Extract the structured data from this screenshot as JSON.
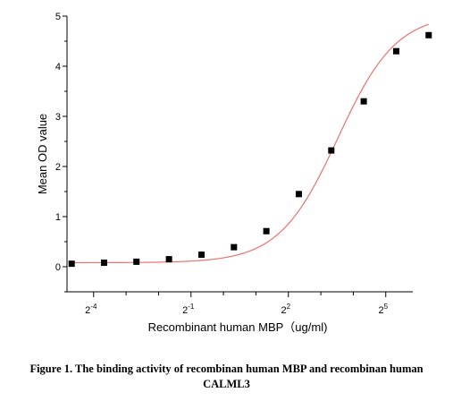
{
  "chart_data": {
    "type": "scatter",
    "xlabel": "Recombinant human  MBP（ug/ml)",
    "ylabel": "Mean OD value",
    "xscale": "log2",
    "xlim": [
      0.0354,
      57.0
    ],
    "ylim": [
      -0.5,
      5
    ],
    "yticks": [
      0,
      1,
      2,
      3,
      4,
      5
    ],
    "xticks": [
      {
        "base": "2",
        "exp": "-4",
        "value": 0.0625
      },
      {
        "base": "2",
        "exp": "-1",
        "value": 0.5
      },
      {
        "base": "2",
        "exp": "2",
        "value": 4
      },
      {
        "base": "2",
        "exp": "5",
        "value": 32
      }
    ],
    "series": [
      {
        "marker": "square",
        "color": "#000000",
        "points": [
          {
            "x": 0.0391,
            "y": 0.06
          },
          {
            "x": 0.0781,
            "y": 0.08
          },
          {
            "x": 0.156,
            "y": 0.1
          },
          {
            "x": 0.3125,
            "y": 0.15
          },
          {
            "x": 0.625,
            "y": 0.24
          },
          {
            "x": 1.25,
            "y": 0.39
          },
          {
            "x": 2.5,
            "y": 0.71
          },
          {
            "x": 5,
            "y": 1.45
          },
          {
            "x": 10,
            "y": 2.32
          },
          {
            "x": 20,
            "y": 3.3
          },
          {
            "x": 40,
            "y": 4.3
          },
          {
            "x": 80,
            "y": 4.62
          }
        ]
      }
    ],
    "fit_curve": {
      "color": "#e8736f",
      "bottom": 0.08,
      "top": 5.05,
      "ec50": 11.5,
      "hill": 1.6
    },
    "grid": false
  },
  "caption": {
    "line1": "Figure 1. The binding activity of recombinan human MBP and recombinan human",
    "line2": "CALML3"
  }
}
